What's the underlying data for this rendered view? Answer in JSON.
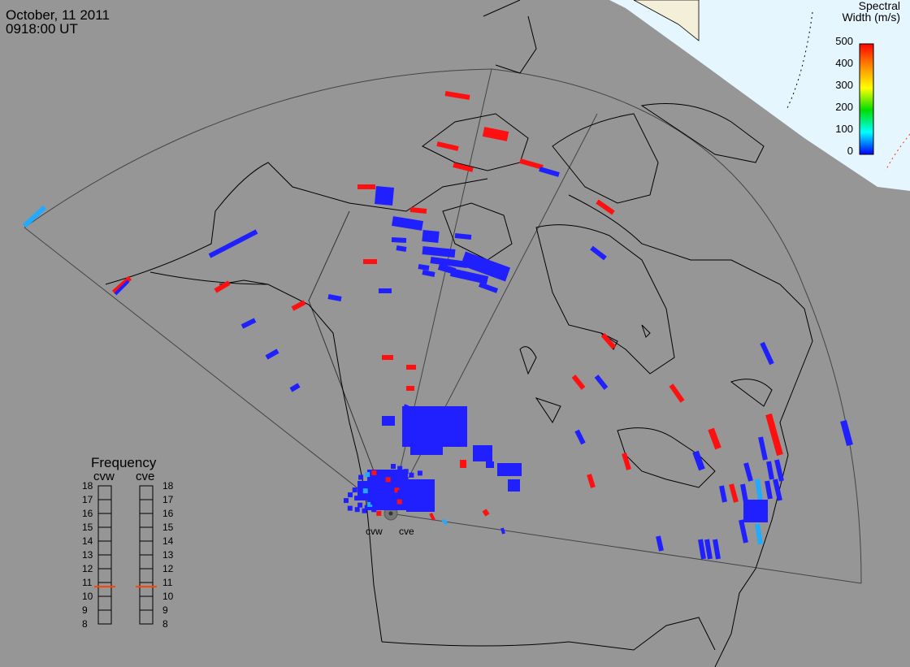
{
  "header": {
    "date": "October, 11 2011",
    "time": "0918:00 UT"
  },
  "colorbar": {
    "title_line1": "Spectral",
    "title_line2": "Width (m/s)",
    "ticks": [
      "500",
      "400",
      "300",
      "200",
      "100",
      "0"
    ],
    "colors": [
      "#ff0000",
      "#ff8800",
      "#ffff00",
      "#00dd00",
      "#00ffff",
      "#0000ff"
    ]
  },
  "frequency_panel": {
    "title": "Frequency",
    "radars": [
      {
        "name": "cvw",
        "marker_value": 10.7
      },
      {
        "name": "cve",
        "marker_value": 10.7
      }
    ],
    "ticks": [
      "18",
      "17",
      "16",
      "15",
      "14",
      "13",
      "12",
      "11",
      "10",
      "9",
      "8"
    ],
    "marker_color": "#ff4400"
  },
  "radar_sites": [
    {
      "name": "cvw"
    },
    {
      "name": "cve"
    }
  ],
  "colors": {
    "ocean": "#ffffff",
    "polar_sky": "#e6f6ff",
    "land": "#969696",
    "coast": "#000000",
    "fov": "#555555",
    "blue": "#2020ff",
    "red": "#ff1010",
    "cyan": "#22aaff"
  }
}
